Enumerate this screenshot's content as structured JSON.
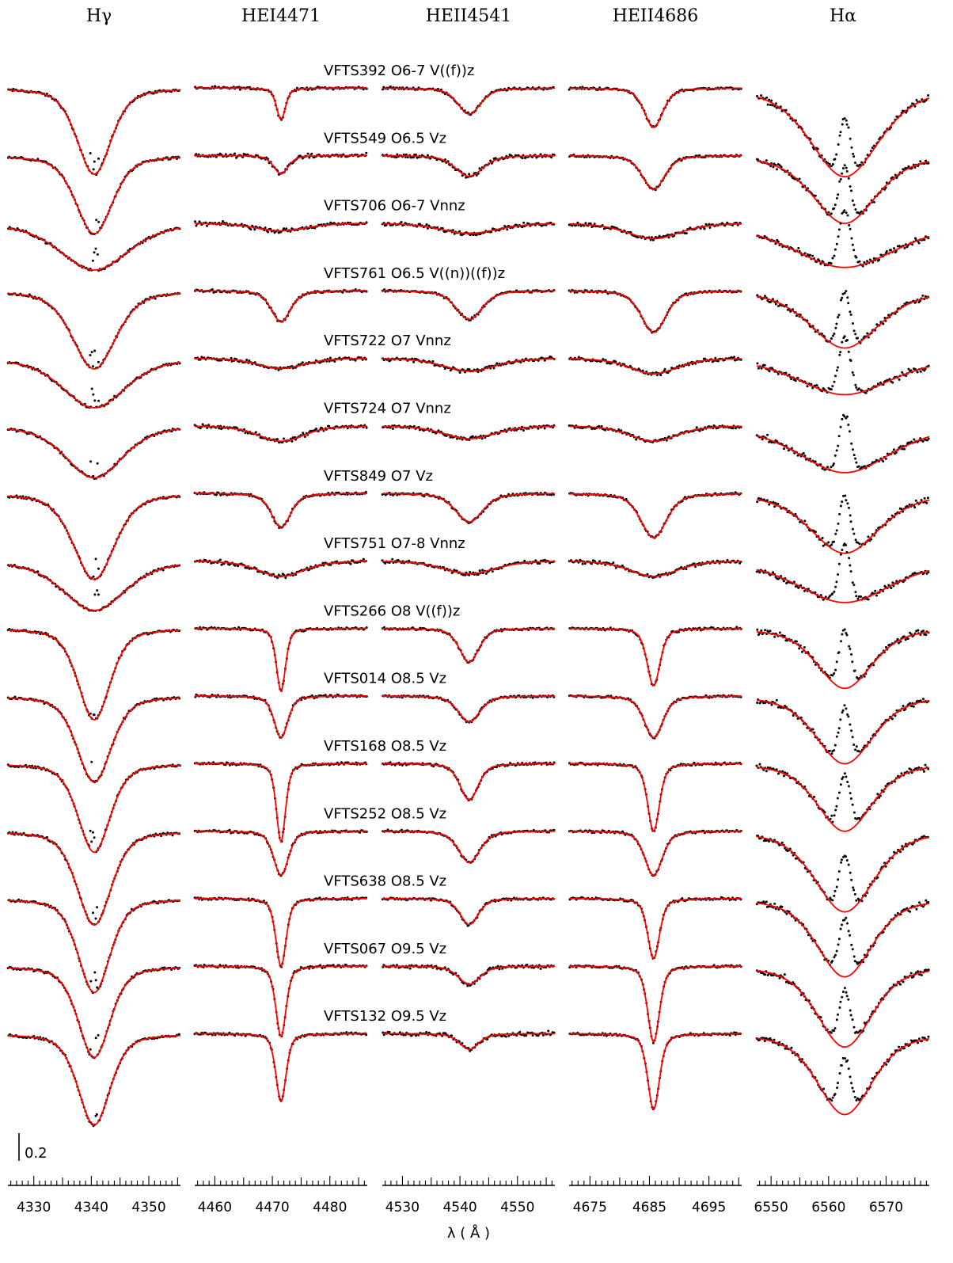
{
  "chart_data": {
    "type": "line",
    "columns": [
      {
        "title": "Hγ",
        "line": "Hgamma",
        "center": 4340.5,
        "xlim": [
          4325.5,
          4355.5
        ],
        "ticks": [
          4330,
          4340,
          4350
        ],
        "minor_step": 1
      },
      {
        "title": "HEI4471",
        "line": "HeI4471",
        "center": 4471.5,
        "xlim": [
          4456.5,
          4486.5
        ],
        "ticks": [
          4460,
          4470,
          4480
        ],
        "minor_step": 1
      },
      {
        "title": "HEII4541",
        "line": "HeII4541",
        "center": 4541.6,
        "xlim": [
          4526.5,
          4556.5
        ],
        "ticks": [
          4530,
          4540,
          4550
        ],
        "minor_step": 1
      },
      {
        "title": "HEII4686",
        "line": "HeII4686",
        "center": 4685.7,
        "xlim": [
          4671.5,
          4700.5
        ],
        "ticks": [
          4675,
          4685,
          4695
        ],
        "minor_step": 1
      },
      {
        "title": "Hα",
        "line": "Halpha",
        "center": 6562.8,
        "xlim": [
          6547.5,
          6577.5
        ],
        "ticks": [
          6550,
          6560,
          6570
        ],
        "minor_step": 1
      }
    ],
    "xlabel": "λ ( Å )",
    "scale_bar_label": "0.2",
    "stars": [
      {
        "label": "VFTS392   O6-7 V((f))z",
        "depths": [
          0.33,
          0.12,
          0.1,
          0.15,
          0.34
        ],
        "widths": [
          3.0,
          0.8,
          2.0,
          1.6,
          6.0
        ]
      },
      {
        "label": "VFTS549   O6.5 Vz",
        "depths": [
          0.3,
          0.07,
          0.08,
          0.13,
          0.26
        ],
        "widths": [
          3.2,
          1.3,
          2.4,
          1.9,
          5.5
        ]
      },
      {
        "label": "VFTS706   O6-7 Vnnz",
        "depths": [
          0.18,
          0.03,
          0.04,
          0.06,
          0.17
        ],
        "widths": [
          6.0,
          4.5,
          5.0,
          4.5,
          9.0
        ]
      },
      {
        "label": "VFTS761   O6.5 V((n))((f))z",
        "depths": [
          0.3,
          0.12,
          0.11,
          0.16,
          0.22
        ],
        "widths": [
          3.8,
          1.7,
          2.3,
          2.1,
          6.0
        ]
      },
      {
        "label": "VFTS722   O7 Vnnz",
        "depths": [
          0.19,
          0.04,
          0.05,
          0.06,
          0.14
        ],
        "widths": [
          5.5,
          4.0,
          4.5,
          4.0,
          8.0
        ]
      },
      {
        "label": "VFTS724   O7 Vnnz",
        "depths": [
          0.2,
          0.06,
          0.05,
          0.06,
          0.18
        ],
        "widths": [
          5.0,
          4.0,
          4.5,
          4.0,
          8.0
        ]
      },
      {
        "label": "VFTS849   O7 Vz",
        "depths": [
          0.33,
          0.13,
          0.11,
          0.17,
          0.23
        ],
        "widths": [
          3.6,
          1.7,
          2.4,
          2.2,
          6.0
        ]
      },
      {
        "label": "VFTS751   O7-8 Vnnz",
        "depths": [
          0.19,
          0.06,
          0.05,
          0.06,
          0.16
        ],
        "widths": [
          5.5,
          4.0,
          4.5,
          4.0,
          8.0
        ]
      },
      {
        "label": "VFTS266   O8 V((f))z",
        "depths": [
          0.35,
          0.24,
          0.13,
          0.22,
          0.23
        ],
        "widths": [
          2.8,
          0.8,
          1.7,
          1.1,
          4.8
        ]
      },
      {
        "label": "VFTS014   O8.5 Vz",
        "depths": [
          0.33,
          0.16,
          0.1,
          0.16,
          0.26
        ],
        "widths": [
          3.0,
          1.2,
          1.9,
          1.6,
          5.0
        ]
      },
      {
        "label": "VFTS168   O8.5 Vz",
        "depths": [
          0.34,
          0.3,
          0.14,
          0.26,
          0.26
        ],
        "widths": [
          2.8,
          0.8,
          1.6,
          1.0,
          4.8
        ]
      },
      {
        "label": "VFTS252   O8.5 Vz",
        "depths": [
          0.36,
          0.17,
          0.12,
          0.17,
          0.31
        ],
        "widths": [
          3.0,
          1.3,
          1.9,
          1.5,
          5.2
        ]
      },
      {
        "label": "VFTS638   O8.5 Vz",
        "depths": [
          0.36,
          0.26,
          0.1,
          0.23,
          0.3
        ],
        "widths": [
          2.8,
          0.9,
          1.6,
          1.0,
          4.8
        ]
      },
      {
        "label": "VFTS067   O9.5 Vz",
        "depths": [
          0.35,
          0.27,
          0.07,
          0.29,
          0.31
        ],
        "widths": [
          2.8,
          0.9,
          1.9,
          1.0,
          4.8
        ]
      },
      {
        "label": "VFTS132   O9.5 Vz",
        "depths": [
          0.35,
          0.26,
          0.06,
          0.29,
          0.31
        ],
        "widths": [
          2.8,
          0.9,
          1.7,
          1.0,
          4.8
        ]
      }
    ],
    "series": [
      {
        "style": "black dots",
        "role": "observed spectrum"
      },
      {
        "style": "red line",
        "role": "model fit"
      }
    ],
    "colors": {
      "model": "#ff0000",
      "observed": "#000000",
      "axis": "#000000"
    }
  }
}
